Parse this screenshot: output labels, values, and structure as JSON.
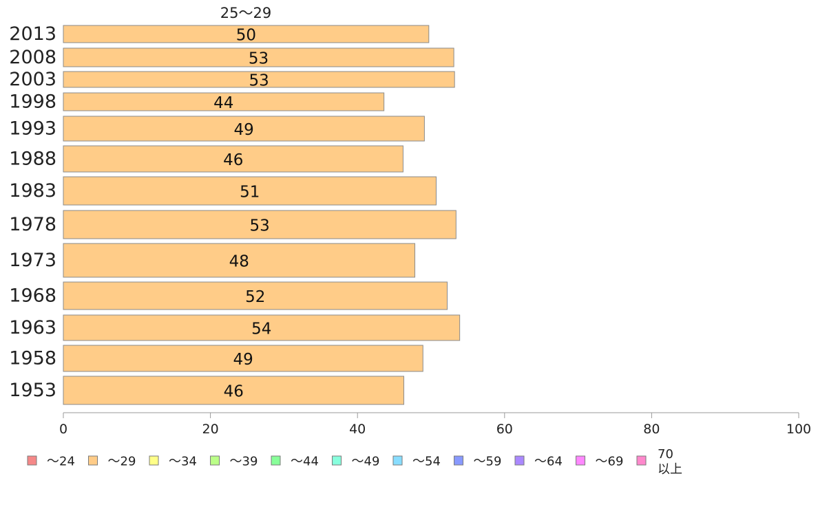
{
  "chart_data": {
    "type": "bar",
    "orientation": "horizontal",
    "title": "25～29",
    "categories": [
      "2013",
      "2008",
      "2003",
      "1998",
      "1993",
      "1988",
      "1983",
      "1978",
      "1973",
      "1968",
      "1963",
      "1958",
      "1953"
    ],
    "series": [
      {
        "name": "～29",
        "color": "#ffcc88",
        "values": [
          50,
          53,
          53,
          44,
          49,
          46,
          51,
          53,
          48,
          52,
          54,
          49,
          46
        ],
        "plot_values": [
          49.7,
          53.1,
          53.2,
          43.6,
          49.1,
          46.2,
          50.7,
          53.4,
          47.8,
          52.2,
          53.9,
          48.9,
          46.3
        ]
      }
    ],
    "xlim": [
      0,
      100
    ],
    "xticks": [
      0,
      20,
      40,
      60,
      80,
      100
    ],
    "grid": false,
    "legend_placement": "bottom",
    "legend": [
      {
        "label": "～24",
        "color": "#f58888"
      },
      {
        "label": "～29",
        "color": "#ffcc88"
      },
      {
        "label": "～34",
        "color": "#ffff88"
      },
      {
        "label": "～39",
        "color": "#bbff88"
      },
      {
        "label": "～44",
        "color": "#88ff99"
      },
      {
        "label": "～49",
        "color": "#88ffdd"
      },
      {
        "label": "～54",
        "color": "#88ddff"
      },
      {
        "label": "～59",
        "color": "#8899ff"
      },
      {
        "label": "～64",
        "color": "#aa88ff"
      },
      {
        "label": "～69",
        "color": "#ff88ff"
      },
      {
        "label": "70\n以上",
        "color": "#ff88cc"
      }
    ]
  }
}
